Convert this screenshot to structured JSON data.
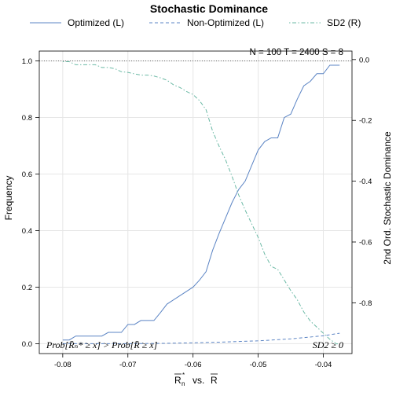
{
  "chart_data": {
    "type": "line",
    "title": "Stochastic Dominance",
    "xlabel": "R̄ₙ* vs. R̄",
    "ylabel_left": "Frequency",
    "ylabel_right": "2nd Ord. Stochastic Dominance",
    "xlim": [
      -0.0836,
      -0.0356
    ],
    "ylim_left": [
      -0.035,
      1.035
    ],
    "ylim_right": [
      -0.967,
      0.028
    ],
    "x_ticks": [
      -0.08,
      -0.07,
      -0.06,
      -0.05,
      -0.04
    ],
    "x_tick_labels": [
      "-0.08",
      "-0.07",
      "-0.06",
      "-0.05",
      "-0.04"
    ],
    "y_left_ticks": [
      0.0,
      0.2,
      0.4,
      0.6,
      0.8,
      1.0
    ],
    "y_left_tick_labels": [
      "0.0",
      "0.2",
      "0.4",
      "0.6",
      "0.8",
      "1.0"
    ],
    "y_right_ticks": [
      0.0,
      -0.2,
      -0.4,
      -0.6,
      -0.8
    ],
    "y_right_tick_labels": [
      "0.0",
      "-0.2",
      "-0.4",
      "-0.6",
      "-0.8"
    ],
    "grid": true,
    "legend_position": "top",
    "reference_line_left": 1.0,
    "annotation_top_right": "N = 100  T = 2400  S = 8",
    "annotation_bottom_left": "Prob[R̄ₙ* ≥ x] > Prob[R̄ ≥ x]",
    "annotation_bottom_right": "SD2 ≥ 0",
    "series": [
      {
        "name": "Optimized (L)",
        "axis": "left",
        "color": "#5b84c4",
        "dash": "solid",
        "x": [
          -0.08,
          -0.079,
          -0.078,
          -0.077,
          -0.074,
          -0.073,
          -0.071,
          -0.07,
          -0.069,
          -0.068,
          -0.066,
          -0.065,
          -0.064,
          -0.06,
          -0.059,
          -0.058,
          -0.057,
          -0.056,
          -0.055,
          -0.054,
          -0.053,
          -0.052,
          -0.051,
          -0.05,
          -0.049,
          -0.048,
          -0.047,
          -0.046,
          -0.045,
          -0.044,
          -0.043,
          -0.042,
          -0.041,
          -0.04,
          -0.039,
          -0.038,
          -0.0375
        ],
        "y": [
          0.013,
          0.013,
          0.027,
          0.027,
          0.027,
          0.04,
          0.04,
          0.068,
          0.068,
          0.082,
          0.082,
          0.11,
          0.14,
          0.2,
          0.225,
          0.255,
          0.33,
          0.39,
          0.445,
          0.5,
          0.545,
          0.575,
          0.63,
          0.685,
          0.715,
          0.728,
          0.728,
          0.8,
          0.812,
          0.865,
          0.912,
          0.928,
          0.955,
          0.955,
          0.985,
          0.985,
          0.985
        ]
      },
      {
        "name": "Non-Optimized (L)",
        "axis": "left",
        "color": "#5b84c4",
        "dash": "dashed",
        "x": [
          -0.08,
          -0.075,
          -0.07,
          -0.065,
          -0.06,
          -0.055,
          -0.05,
          -0.045,
          -0.04,
          -0.0375
        ],
        "y": [
          0.0,
          0.0,
          0.0,
          0.001,
          0.003,
          0.006,
          0.01,
          0.017,
          0.028,
          0.037
        ]
      },
      {
        "name": "SD2 (R)",
        "axis": "right",
        "color": "#6bb9a5",
        "dash": "dotdash",
        "x": [
          -0.08,
          -0.079,
          -0.078,
          -0.075,
          -0.074,
          -0.073,
          -0.072,
          -0.071,
          -0.07,
          -0.069,
          -0.068,
          -0.067,
          -0.066,
          -0.065,
          -0.064,
          -0.063,
          -0.062,
          -0.061,
          -0.06,
          -0.059,
          -0.058,
          -0.057,
          -0.056,
          -0.055,
          -0.054,
          -0.053,
          -0.052,
          -0.051,
          -0.05,
          -0.049,
          -0.048,
          -0.047,
          -0.046,
          -0.045,
          -0.044,
          -0.043,
          -0.042,
          -0.041,
          -0.04,
          -0.039,
          -0.038,
          -0.0375
        ],
        "y": [
          -0.007,
          -0.007,
          -0.017,
          -0.017,
          -0.026,
          -0.026,
          -0.03,
          -0.04,
          -0.042,
          -0.047,
          -0.051,
          -0.051,
          -0.054,
          -0.06,
          -0.068,
          -0.083,
          -0.092,
          -0.105,
          -0.115,
          -0.135,
          -0.165,
          -0.235,
          -0.285,
          -0.33,
          -0.385,
          -0.445,
          -0.495,
          -0.54,
          -0.585,
          -0.64,
          -0.68,
          -0.69,
          -0.725,
          -0.76,
          -0.79,
          -0.83,
          -0.86,
          -0.88,
          -0.9,
          -0.92,
          -0.935,
          -0.935
        ]
      }
    ]
  }
}
